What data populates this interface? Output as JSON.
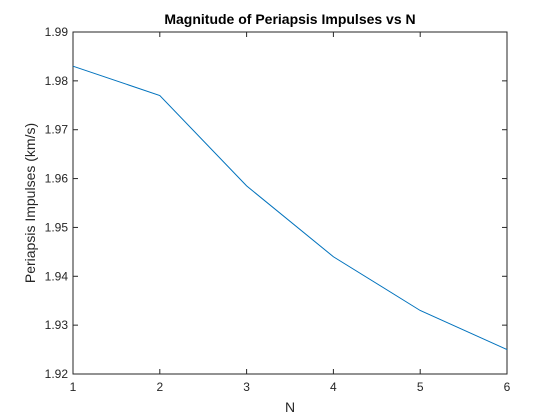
{
  "chart_data": {
    "type": "line",
    "title": "Magnitude of Periapsis Impulses vs N",
    "xlabel": "N",
    "ylabel": "Periapsis Impulses (km/s)",
    "xlim": [
      1,
      6
    ],
    "ylim": [
      1.92,
      1.99
    ],
    "xticks": [
      "1",
      "2",
      "3",
      "4",
      "5",
      "6"
    ],
    "yticks": [
      "1.92",
      "1.93",
      "1.94",
      "1.95",
      "1.96",
      "1.97",
      "1.98",
      "1.99"
    ],
    "grid": false,
    "series": [
      {
        "name": "Periapsis Impulses",
        "color": "#0072bd",
        "x": [
          1,
          2,
          3,
          4,
          5,
          6
        ],
        "values": [
          1.983,
          1.977,
          1.9585,
          1.944,
          1.933,
          1.925
        ]
      }
    ]
  }
}
